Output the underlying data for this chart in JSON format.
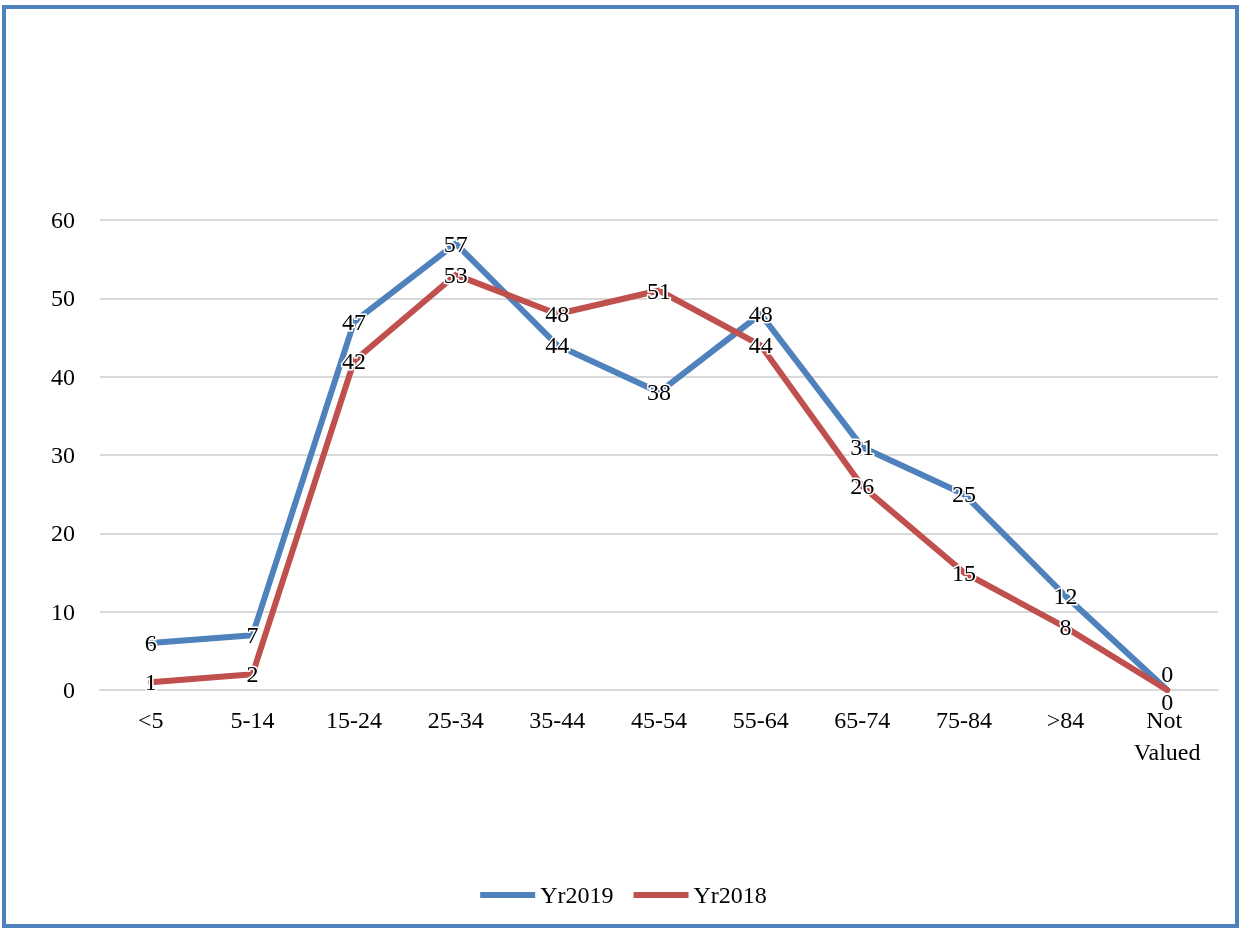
{
  "chart_data": {
    "type": "line",
    "categories": [
      "<5",
      "5-14",
      "15-24",
      "25-34",
      "35-44",
      "45-54",
      "55-64",
      "65-74",
      "75-84",
      ">84",
      "Not Valued"
    ],
    "series": [
      {
        "name": "Yr2019",
        "color": "#4f81bd",
        "values": [
          6,
          7,
          47,
          57,
          44,
          38,
          48,
          31,
          25,
          12,
          0
        ]
      },
      {
        "name": "Yr2018",
        "color": "#c0504d",
        "values": [
          1,
          2,
          42,
          53,
          48,
          51,
          44,
          26,
          15,
          8,
          0
        ]
      }
    ],
    "ylim": [
      0,
      60
    ],
    "yticks": [
      0,
      10,
      20,
      30,
      40,
      50,
      60
    ],
    "grid": "y",
    "legend": "bottom",
    "data_labels": true,
    "marker": "none",
    "line_style": "solid"
  }
}
